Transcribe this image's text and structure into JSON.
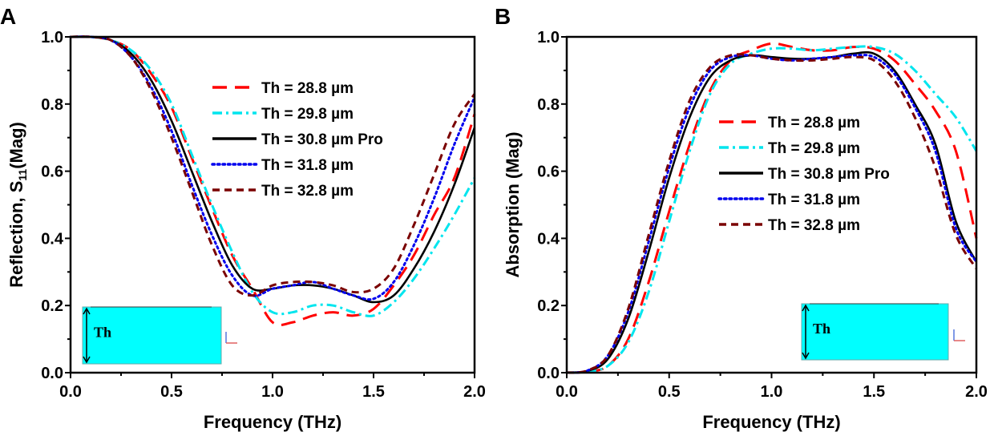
{
  "chart_data": [
    {
      "type": "line",
      "panel_label": "A",
      "xlabel": "Frequency (THz)",
      "ylabel_main": "Reflection, S",
      "ylabel_sub": "11",
      "ylabel_tail": "(Mag)",
      "xlim": [
        0,
        2.0
      ],
      "ylim": [
        0,
        1.0
      ],
      "xticks": [
        "0.0",
        "0.5",
        "1.0",
        "1.5",
        "2.0"
      ],
      "yticks": [
        "0.0",
        "0.2",
        "0.4",
        "0.6",
        "0.8",
        "1.0"
      ],
      "legend_placement": "top-center",
      "inset_label": "Th",
      "x": [
        0,
        0.1,
        0.2,
        0.3,
        0.4,
        0.5,
        0.6,
        0.7,
        0.8,
        0.9,
        1.0,
        1.1,
        1.2,
        1.3,
        1.4,
        1.5,
        1.6,
        1.7,
        1.8,
        1.9,
        2.0
      ],
      "series": [
        {
          "name": "Th = 28.8 µm",
          "color": "#ff0000",
          "style": "dash",
          "values": [
            1,
            1,
            0.99,
            0.96,
            0.89,
            0.79,
            0.64,
            0.49,
            0.35,
            0.25,
            0.15,
            0.15,
            0.17,
            0.18,
            0.17,
            0.19,
            0.26,
            0.35,
            0.47,
            0.58,
            0.77
          ]
        },
        {
          "name": "Th = 29.8 µm",
          "color": "#00e5ee",
          "style": "dashdot",
          "values": [
            1,
            1,
            0.99,
            0.96,
            0.9,
            0.8,
            0.65,
            0.5,
            0.36,
            0.24,
            0.18,
            0.18,
            0.2,
            0.2,
            0.18,
            0.17,
            0.21,
            0.28,
            0.37,
            0.47,
            0.58
          ]
        },
        {
          "name": "Th = 30.8 µm Pro",
          "color": "#000000",
          "style": "solid",
          "values": [
            1,
            1,
            0.99,
            0.95,
            0.87,
            0.75,
            0.6,
            0.45,
            0.32,
            0.25,
            0.25,
            0.26,
            0.26,
            0.25,
            0.23,
            0.21,
            0.23,
            0.31,
            0.42,
            0.56,
            0.73
          ]
        },
        {
          "name": "Th = 31.8 µm",
          "color": "#0000ee",
          "style": "dot",
          "values": [
            1,
            1,
            0.99,
            0.94,
            0.85,
            0.72,
            0.56,
            0.41,
            0.29,
            0.23,
            0.25,
            0.26,
            0.27,
            0.25,
            0.23,
            0.22,
            0.27,
            0.38,
            0.52,
            0.68,
            0.82
          ]
        },
        {
          "name": "Th = 32.8 µm",
          "color": "#7a0000",
          "style": "shortdash",
          "values": [
            1,
            1,
            0.99,
            0.94,
            0.84,
            0.7,
            0.54,
            0.38,
            0.26,
            0.23,
            0.26,
            0.27,
            0.27,
            0.26,
            0.24,
            0.25,
            0.31,
            0.44,
            0.59,
            0.74,
            0.83
          ]
        }
      ]
    },
    {
      "type": "line",
      "panel_label": "B",
      "xlabel": "Frequency (THz)",
      "ylabel_main": "Absorption (Mag)",
      "xlim": [
        0,
        2.0
      ],
      "ylim": [
        0,
        1.0
      ],
      "xticks": [
        "0.0",
        "0.5",
        "1.0",
        "1.5",
        "2.0"
      ],
      "yticks": [
        "0.0",
        "0.2",
        "0.4",
        "0.6",
        "0.8",
        "1.0"
      ],
      "legend_placement": "center",
      "inset_label": "Th",
      "x": [
        0,
        0.1,
        0.2,
        0.3,
        0.4,
        0.5,
        0.6,
        0.7,
        0.8,
        0.9,
        1.0,
        1.1,
        1.2,
        1.3,
        1.4,
        1.5,
        1.6,
        1.7,
        1.8,
        1.9,
        2.0
      ],
      "series": [
        {
          "name": "Th = 28.8 µm",
          "color": "#ff0000",
          "style": "dash",
          "values": [
            0,
            0.003,
            0.02,
            0.1,
            0.27,
            0.48,
            0.68,
            0.84,
            0.93,
            0.96,
            0.98,
            0.97,
            0.96,
            0.96,
            0.97,
            0.965,
            0.93,
            0.86,
            0.78,
            0.66,
            0.4
          ]
        },
        {
          "name": "Th = 29.8 µm",
          "color": "#00e5ee",
          "style": "dashdot",
          "values": [
            0,
            0.003,
            0.02,
            0.09,
            0.24,
            0.45,
            0.66,
            0.83,
            0.92,
            0.95,
            0.965,
            0.965,
            0.96,
            0.965,
            0.97,
            0.97,
            0.95,
            0.9,
            0.83,
            0.76,
            0.66
          ]
        },
        {
          "name": "Th = 30.8 µm Pro",
          "color": "#000000",
          "style": "solid",
          "values": [
            0,
            0.005,
            0.04,
            0.16,
            0.36,
            0.58,
            0.76,
            0.88,
            0.93,
            0.945,
            0.94,
            0.935,
            0.935,
            0.94,
            0.95,
            0.95,
            0.9,
            0.8,
            0.68,
            0.45,
            0.33
          ]
        },
        {
          "name": "Th = 31.8 µm",
          "color": "#0000ee",
          "style": "dot",
          "values": [
            0,
            0.006,
            0.05,
            0.18,
            0.39,
            0.61,
            0.79,
            0.9,
            0.94,
            0.945,
            0.935,
            0.93,
            0.935,
            0.94,
            0.945,
            0.94,
            0.89,
            0.79,
            0.66,
            0.43,
            0.33
          ]
        },
        {
          "name": "Th = 32.8 µm",
          "color": "#7a0000",
          "style": "shortdash",
          "values": [
            0,
            0.006,
            0.05,
            0.19,
            0.41,
            0.63,
            0.81,
            0.91,
            0.945,
            0.945,
            0.935,
            0.93,
            0.93,
            0.935,
            0.94,
            0.93,
            0.87,
            0.76,
            0.61,
            0.41,
            0.31
          ]
        }
      ]
    }
  ]
}
